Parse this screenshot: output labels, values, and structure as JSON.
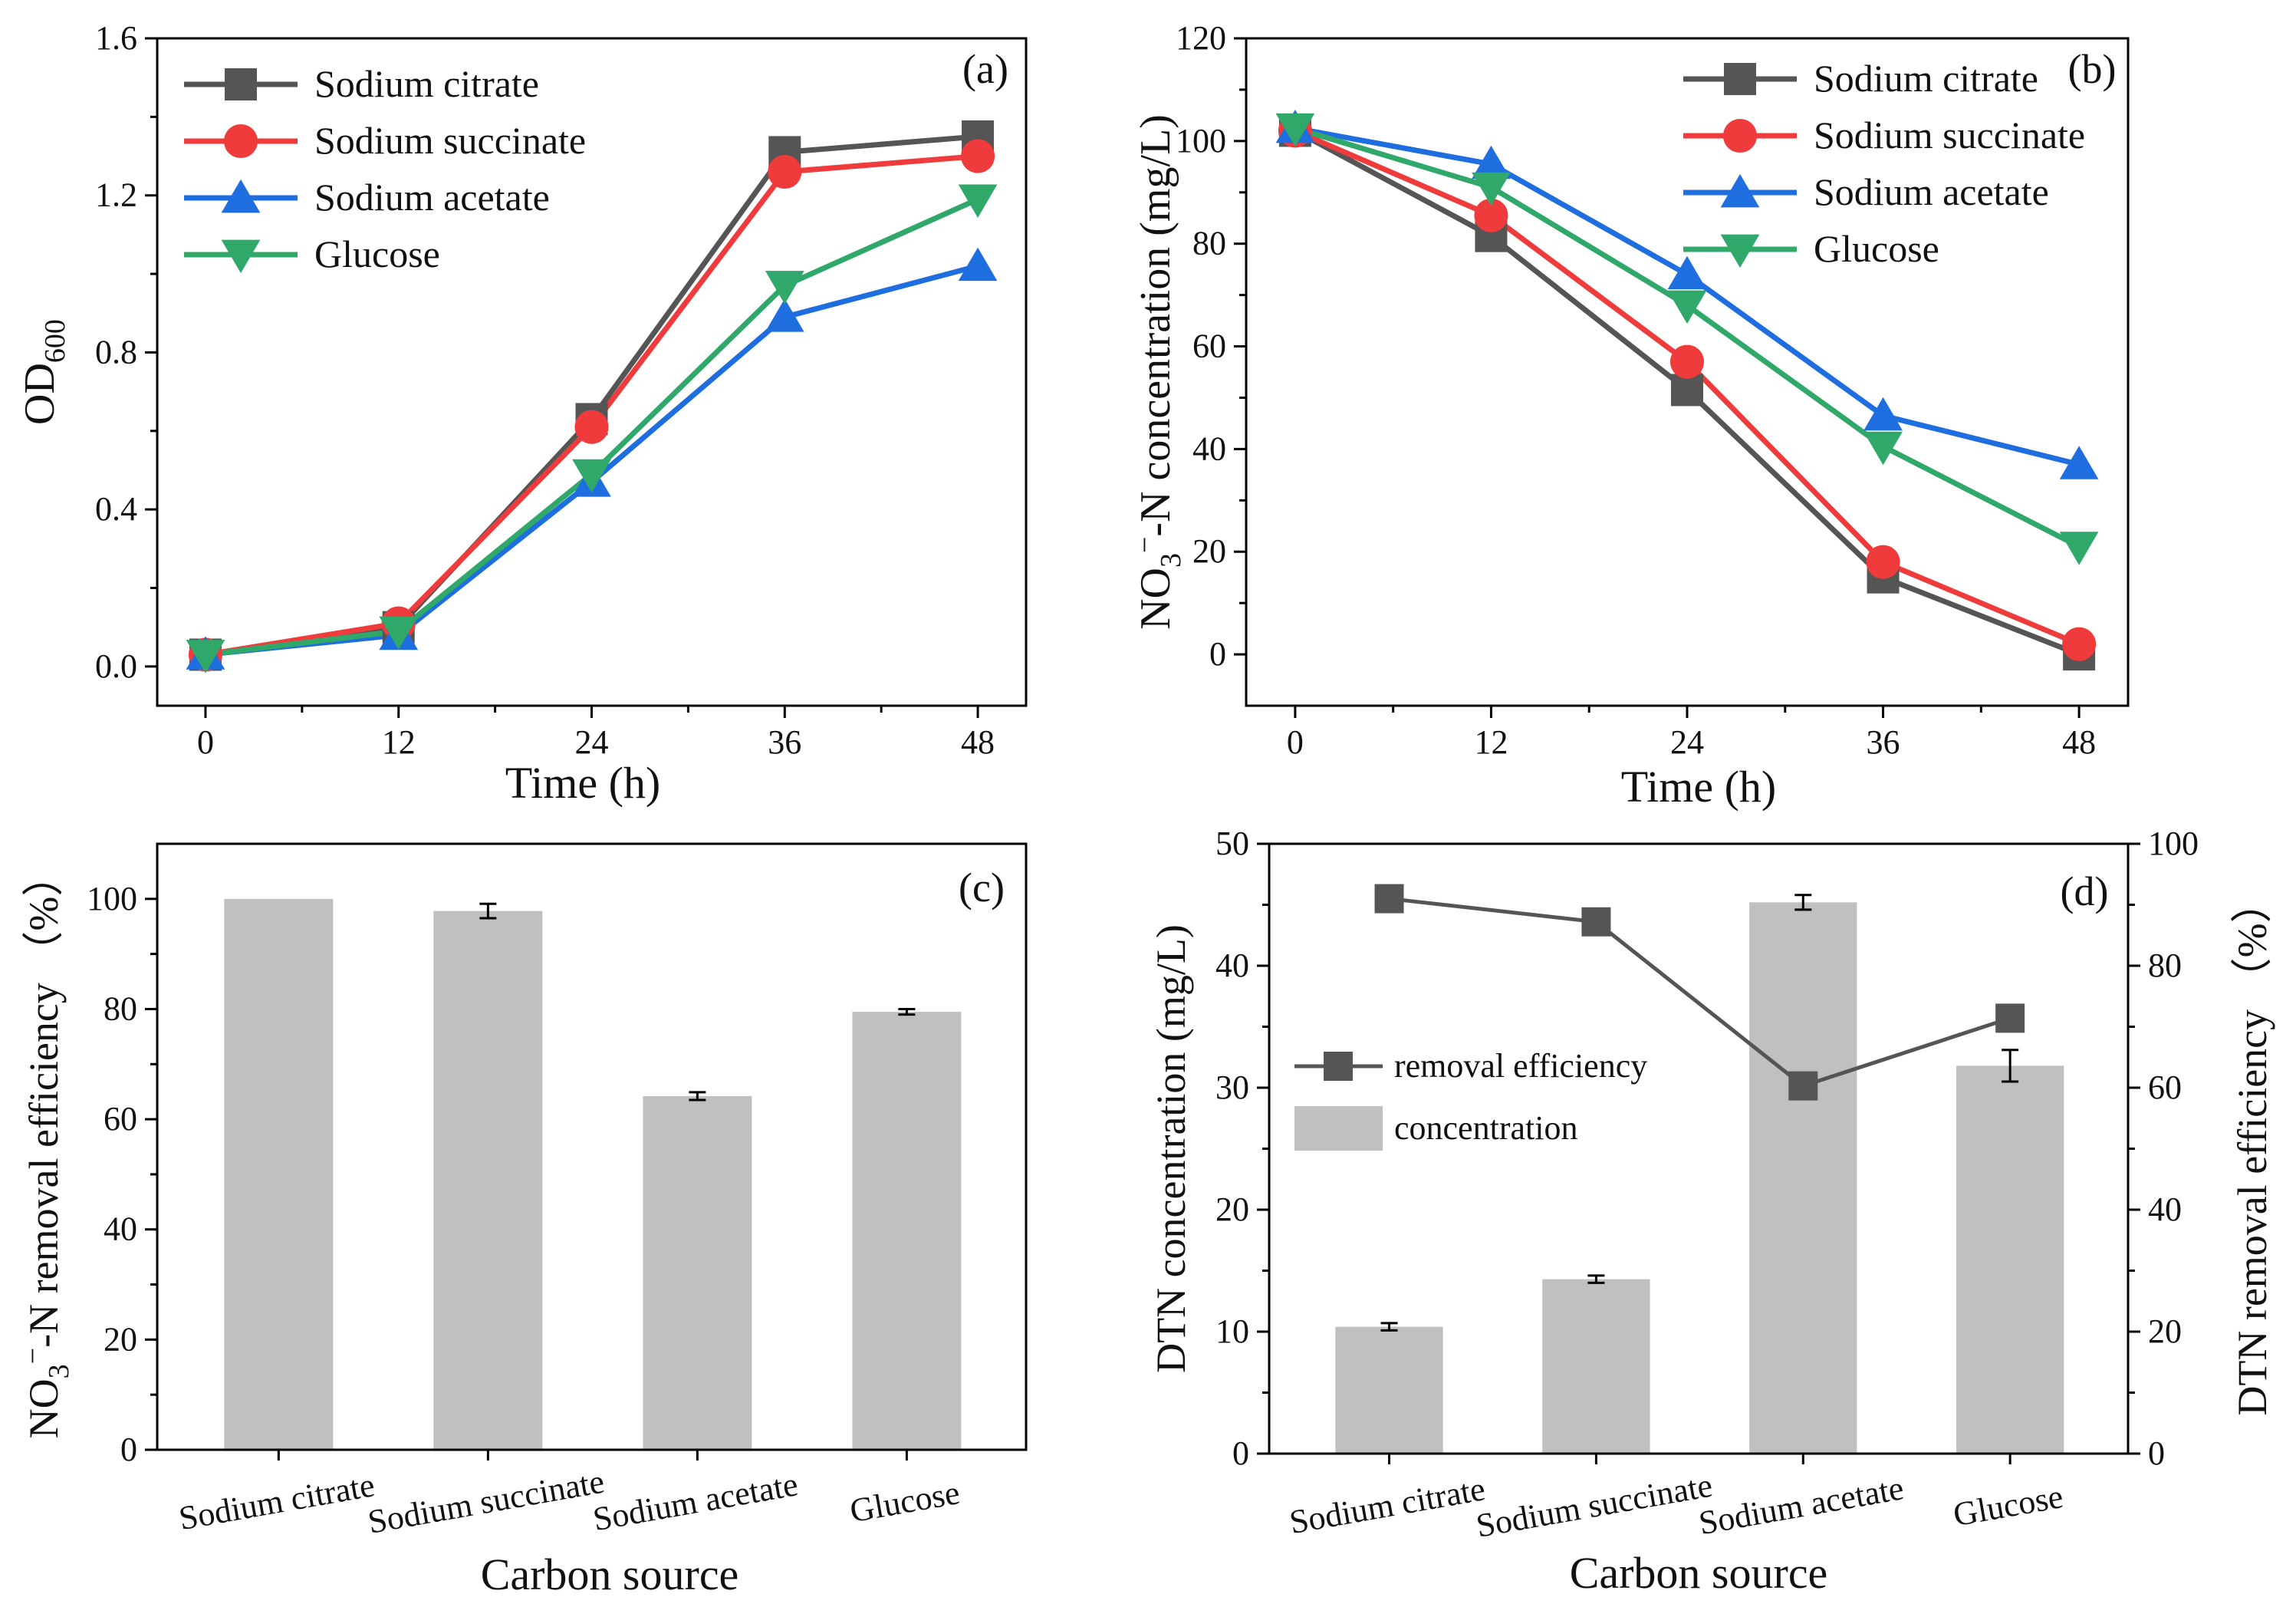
{
  "colors": {
    "citrate": "#555555",
    "succinate": "#ef3b3b",
    "acetate": "#1f6ee0",
    "glucose": "#2fa86a",
    "bar": "#c0c0c0",
    "axis": "#000000"
  },
  "chart_data": [
    {
      "id": "a",
      "type": "line",
      "panel_label": "(a)",
      "title": "",
      "xlabel": "Time (h)",
      "ylabel": "OD",
      "ylabel_sub": "600",
      "x": [
        0,
        12,
        24,
        36,
        48
      ],
      "xlim": [
        -3,
        51
      ],
      "ylim": [
        -0.1,
        1.6
      ],
      "yticks": [
        0.0,
        0.4,
        0.8,
        1.2,
        1.6
      ],
      "ytick_labels": [
        "0.0",
        "0.4",
        "0.8",
        "1.2",
        "1.6"
      ],
      "xtick_labels": [
        "0",
        "12",
        "24",
        "36",
        "48"
      ],
      "legend_position": "top-left",
      "series": [
        {
          "name": "Sodium citrate",
          "key": "citrate",
          "marker": "square",
          "values": [
            0.03,
            0.1,
            0.63,
            1.31,
            1.35
          ]
        },
        {
          "name": "Sodium succinate",
          "key": "succinate",
          "marker": "circle",
          "values": [
            0.03,
            0.11,
            0.61,
            1.26,
            1.3
          ]
        },
        {
          "name": "Sodium acetate",
          "key": "acetate",
          "marker": "triangle-up",
          "values": [
            0.03,
            0.08,
            0.47,
            0.89,
            1.02
          ]
        },
        {
          "name": "Glucose",
          "key": "glucose",
          "marker": "triangle-down",
          "values": [
            0.03,
            0.09,
            0.49,
            0.97,
            1.19
          ]
        }
      ]
    },
    {
      "id": "b",
      "type": "line",
      "panel_label": "(b)",
      "title": "",
      "xlabel": "Time (h)",
      "ylabel": "NO",
      "ylabel_sub": "3",
      "ylabel_sup": "−",
      "ylabel_rest": "-N concentration (mg/L)",
      "x": [
        0,
        12,
        24,
        36,
        48
      ],
      "xlim": [
        -3,
        51
      ],
      "ylim": [
        -10,
        120
      ],
      "yticks": [
        0,
        20,
        40,
        60,
        80,
        100,
        120
      ],
      "ytick_labels": [
        "0",
        "20",
        "40",
        "60",
        "80",
        "100",
        "120"
      ],
      "xtick_labels": [
        "0",
        "12",
        "24",
        "36",
        "48"
      ],
      "legend_position": "top-right",
      "series": [
        {
          "name": "Sodium citrate",
          "key": "citrate",
          "marker": "square",
          "values": [
            102,
            81.5,
            51.5,
            15,
            0
          ]
        },
        {
          "name": "Sodium succinate",
          "key": "succinate",
          "marker": "circle",
          "values": [
            102,
            85.5,
            57,
            18,
            2
          ]
        },
        {
          "name": "Sodium acetate",
          "key": "acetate",
          "marker": "triangle-up",
          "values": [
            102.5,
            95.5,
            74,
            46.5,
            37
          ]
        },
        {
          "name": "Glucose",
          "key": "glucose",
          "marker": "triangle-down",
          "values": [
            102.5,
            91,
            68,
            40.5,
            21
          ]
        }
      ]
    },
    {
      "id": "c",
      "type": "bar",
      "panel_label": "(c)",
      "title": "",
      "xlabel": "Carbon source",
      "ylabel": "NO",
      "ylabel_sub": "3",
      "ylabel_sup": "−",
      "ylabel_rest": "-N removal efficiency （%）",
      "categories": [
        "Sodium citrate",
        "Sodium succinate",
        "Sodium acetate",
        "Glucose"
      ],
      "values": [
        100,
        97.8,
        64.2,
        79.5
      ],
      "errors": [
        0,
        1.3,
        0.7,
        0.5
      ],
      "ylim": [
        0,
        110
      ],
      "yticks": [
        0,
        20,
        40,
        60,
        80,
        100
      ],
      "ytick_labels": [
        "0",
        "20",
        "40",
        "60",
        "80",
        "100"
      ]
    },
    {
      "id": "d",
      "type": "bar+line",
      "panel_label": "(d)",
      "title": "",
      "xlabel": "Carbon source",
      "ylabel_left": "DTN concentration (mg/L)",
      "ylabel_right": "DTN removal efficiency （%）",
      "categories": [
        "Sodium citrate",
        "Sodium succinate",
        "Sodium acetate",
        "Glucose"
      ],
      "bar_name": "concentration",
      "bar_values": [
        10.4,
        14.3,
        45.2,
        31.8
      ],
      "bar_errors": [
        0.3,
        0.3,
        0.6,
        1.3
      ],
      "line_name": "removal efficiency",
      "line_values": [
        91,
        87.2,
        60.3,
        71.4
      ],
      "ylim_left": [
        0,
        50
      ],
      "yticks_left": [
        0,
        10,
        20,
        30,
        40,
        50
      ],
      "ytick_labels_left": [
        "0",
        "10",
        "20",
        "30",
        "40",
        "50"
      ],
      "ylim_right": [
        0,
        100
      ],
      "yticks_right": [
        0,
        20,
        40,
        60,
        80,
        100
      ],
      "ytick_labels_right": [
        "0",
        "20",
        "40",
        "60",
        "80",
        "100"
      ],
      "legend_position": "center-left"
    }
  ]
}
